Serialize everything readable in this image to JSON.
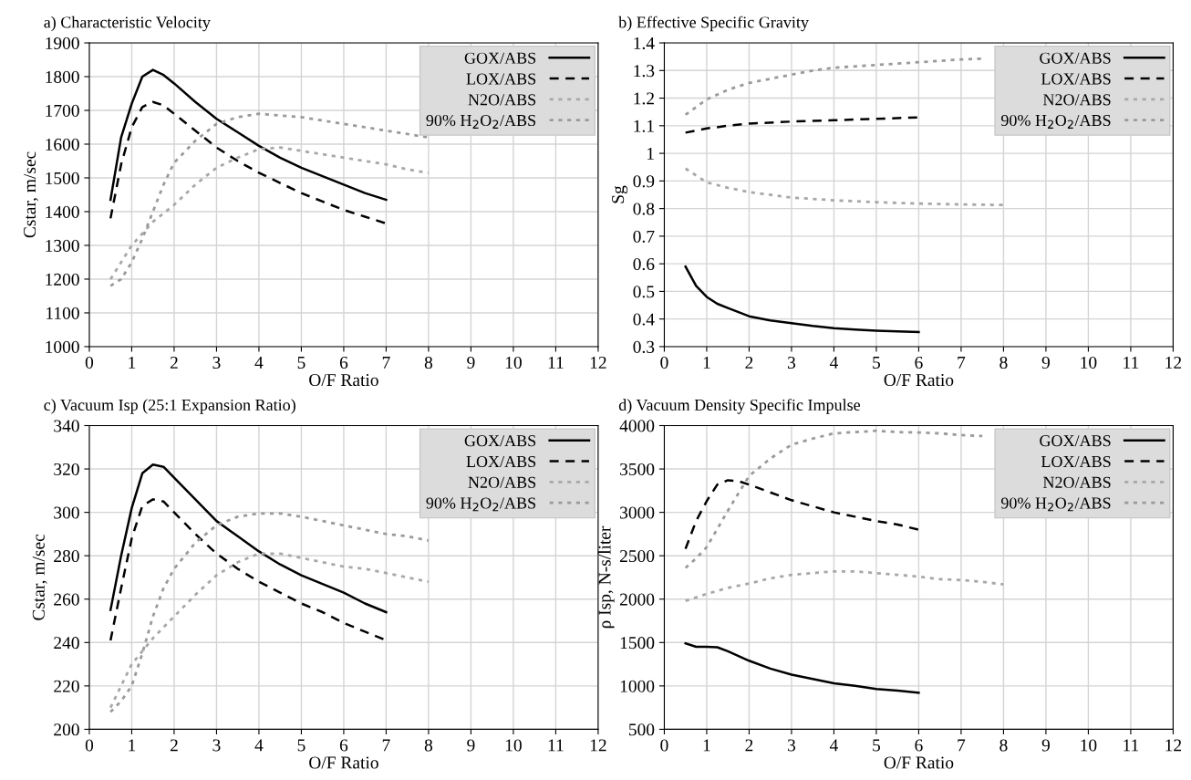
{
  "chart_data": [
    {
      "type": "line",
      "title": "a) Characteristic Velocity",
      "xlabel": "O/F Ratio",
      "ylabel": "Cstar, m/sec",
      "xlim": [
        0,
        12
      ],
      "xticks": [
        0,
        1,
        2,
        3,
        4,
        5,
        6,
        7,
        8,
        9,
        10,
        11,
        12
      ],
      "ylim": [
        1000,
        1900
      ],
      "yticks": [
        1000,
        1100,
        1200,
        1300,
        1400,
        1500,
        1600,
        1700,
        1800,
        1900
      ],
      "grid": true,
      "legend": "top right",
      "series": [
        {
          "name": "GOX/ABS",
          "color": "#000000",
          "line_style": "solid",
          "x": [
            0.5,
            0.75,
            1,
            1.25,
            1.5,
            1.75,
            2,
            2.5,
            3,
            3.5,
            4,
            4.5,
            5,
            5.5,
            6,
            6.5,
            7
          ],
          "values": [
            1435,
            1620,
            1720,
            1800,
            1820,
            1805,
            1780,
            1725,
            1675,
            1635,
            1595,
            1560,
            1530,
            1505,
            1480,
            1455,
            1435
          ]
        },
        {
          "name": "LOX/ABS",
          "color": "#000000",
          "line_style": "dashed",
          "x": [
            0.5,
            0.75,
            1,
            1.25,
            1.5,
            1.75,
            2,
            2.5,
            3,
            3.5,
            4,
            4.5,
            5,
            5.5,
            6,
            6.5,
            7
          ],
          "values": [
            1380,
            1540,
            1650,
            1710,
            1725,
            1715,
            1690,
            1640,
            1590,
            1550,
            1515,
            1485,
            1455,
            1430,
            1405,
            1385,
            1365
          ]
        },
        {
          "name": "N2O/ABS",
          "color": "#a8a8a8",
          "line_style": "dotted",
          "x": [
            0.5,
            0.75,
            1,
            1.5,
            2,
            2.5,
            3,
            3.5,
            4,
            4.5,
            5,
            5.5,
            6,
            6.5,
            7,
            7.5,
            8
          ],
          "values": [
            1200,
            1250,
            1300,
            1370,
            1420,
            1480,
            1530,
            1560,
            1585,
            1590,
            1580,
            1570,
            1560,
            1550,
            1540,
            1525,
            1515
          ]
        },
        {
          "name": "90% H$_{2}$O$_{2}$/ABS",
          "color": "#9a9a9a",
          "line_style": "dotted",
          "x": [
            0.5,
            0.75,
            1,
            1.25,
            1.5,
            1.75,
            2,
            2.5,
            3,
            3.5,
            4,
            4.5,
            5,
            5.5,
            6,
            6.5,
            7,
            7.5,
            8
          ],
          "values": [
            1180,
            1200,
            1250,
            1320,
            1400,
            1480,
            1545,
            1610,
            1660,
            1680,
            1690,
            1685,
            1680,
            1670,
            1660,
            1650,
            1640,
            1630,
            1620
          ]
        }
      ]
    },
    {
      "type": "line",
      "title": "b) Effective Specific Gravity",
      "xlabel": "O/F Ratio",
      "ylabel": "Sg",
      "xlim": [
        0,
        12
      ],
      "xticks": [
        0,
        1,
        2,
        3,
        4,
        5,
        6,
        7,
        8,
        9,
        10,
        11,
        12
      ],
      "ylim": [
        0.3,
        1.4
      ],
      "yticks": [
        0.3,
        0.4,
        0.5,
        0.6,
        0.7,
        0.8,
        0.9,
        1,
        1.1,
        1.2,
        1.3,
        1.4
      ],
      "grid": true,
      "legend": "top right",
      "series": [
        {
          "name": "GOX/ABS",
          "color": "#000000",
          "line_style": "solid",
          "x": [
            0.5,
            0.75,
            1,
            1.25,
            1.5,
            2,
            2.5,
            3,
            3.5,
            4,
            4.5,
            5,
            5.5,
            6
          ],
          "values": [
            0.59,
            0.52,
            0.48,
            0.455,
            0.44,
            0.41,
            0.395,
            0.385,
            0.375,
            0.367,
            0.362,
            0.358,
            0.355,
            0.353
          ]
        },
        {
          "name": "LOX/ABS",
          "color": "#000000",
          "line_style": "dashed",
          "x": [
            0.5,
            1,
            1.5,
            2,
            3,
            4,
            5,
            6
          ],
          "values": [
            1.075,
            1.09,
            1.1,
            1.108,
            1.115,
            1.12,
            1.125,
            1.13
          ]
        },
        {
          "name": "N2O/ABS",
          "color": "#a8a8a8",
          "line_style": "dotted",
          "x": [
            0.5,
            1,
            1.5,
            2,
            2.5,
            3,
            4,
            5,
            6,
            7,
            8
          ],
          "values": [
            0.945,
            0.895,
            0.875,
            0.86,
            0.85,
            0.84,
            0.83,
            0.823,
            0.818,
            0.815,
            0.813
          ]
        },
        {
          "name": "90% H$_{2}$O$_{2}$/ABS",
          "color": "#9a9a9a",
          "line_style": "dotted",
          "x": [
            0.5,
            1,
            1.5,
            2,
            2.5,
            3,
            3.5,
            4,
            5,
            6,
            7,
            7.5
          ],
          "values": [
            1.14,
            1.195,
            1.23,
            1.255,
            1.27,
            1.285,
            1.3,
            1.31,
            1.32,
            1.33,
            1.34,
            1.343
          ]
        }
      ]
    },
    {
      "type": "line",
      "title": "c) Vacuum Isp (25:1 Expansion Ratio)",
      "xlabel": "O/F Ratio",
      "ylabel": "Cstar, m/sec",
      "xlim": [
        0,
        12
      ],
      "xticks": [
        0,
        1,
        2,
        3,
        4,
        5,
        6,
        7,
        8,
        9,
        10,
        11,
        12
      ],
      "ylim": [
        200,
        340
      ],
      "yticks": [
        200,
        220,
        240,
        260,
        280,
        300,
        320,
        340
      ],
      "grid": true,
      "legend": "top right",
      "series": [
        {
          "name": "GOX/ABS",
          "color": "#000000",
          "line_style": "solid",
          "x": [
            0.5,
            0.75,
            1,
            1.25,
            1.5,
            1.75,
            2,
            2.5,
            3,
            3.5,
            4,
            4.5,
            5,
            5.5,
            6,
            6.5,
            7
          ],
          "values": [
            255,
            280,
            302,
            318,
            322,
            321,
            316,
            306,
            296,
            289,
            282,
            276,
            271,
            267,
            263,
            258,
            254
          ]
        },
        {
          "name": "LOX/ABS",
          "color": "#000000",
          "line_style": "dashed",
          "x": [
            0.5,
            0.75,
            1,
            1.25,
            1.5,
            1.75,
            2,
            2.5,
            3,
            3.5,
            4,
            4.5,
            5,
            5.5,
            6,
            6.5,
            7
          ],
          "values": [
            241,
            265,
            288,
            303,
            306,
            305,
            300,
            290,
            281,
            274,
            268,
            263,
            258,
            254,
            249,
            245,
            241
          ]
        },
        {
          "name": "N2O/ABS",
          "color": "#a8a8a8",
          "line_style": "dotted",
          "x": [
            0.5,
            1,
            1.5,
            2,
            2.5,
            3,
            3.5,
            4,
            4.5,
            5,
            5.5,
            6,
            6.5,
            7,
            7.5,
            8
          ],
          "values": [
            210,
            230,
            242,
            252,
            262,
            271,
            277,
            281,
            281,
            279,
            277,
            275,
            274,
            272,
            270,
            268
          ]
        },
        {
          "name": "90% H$_{2}$O$_{2}$/ABS",
          "color": "#9a9a9a",
          "line_style": "dotted",
          "x": [
            0.5,
            0.75,
            1,
            1.25,
            1.5,
            1.75,
            2,
            2.5,
            3,
            3.5,
            4,
            4.5,
            5,
            5.5,
            6,
            6.5,
            7,
            7.5,
            8
          ],
          "values": [
            208,
            213,
            220,
            235,
            252,
            265,
            274,
            286,
            294,
            298,
            299.5,
            299.5,
            298,
            296,
            294,
            292,
            290,
            289,
            287
          ]
        }
      ]
    },
    {
      "type": "line",
      "title": "d) Vacuum Density Specific Impulse",
      "xlabel": "O/F Ratio",
      "ylabel": "ρ Isp, N-s/liter",
      "xlim": [
        0,
        12
      ],
      "xticks": [
        0,
        1,
        2,
        3,
        4,
        5,
        6,
        7,
        8,
        9,
        10,
        11,
        12
      ],
      "ylim": [
        500,
        4000
      ],
      "yticks": [
        500,
        1000,
        1500,
        2000,
        2500,
        3000,
        3500,
        4000
      ],
      "grid": true,
      "legend": "top right",
      "series": [
        {
          "name": "GOX/ABS",
          "color": "#000000",
          "line_style": "solid",
          "x": [
            0.5,
            0.75,
            1,
            1.25,
            1.5,
            2,
            2.5,
            3,
            3.5,
            4,
            4.5,
            5,
            5.5,
            6
          ],
          "values": [
            1490,
            1450,
            1450,
            1445,
            1400,
            1290,
            1200,
            1130,
            1080,
            1030,
            1000,
            965,
            945,
            920
          ]
        },
        {
          "name": "LOX/ABS",
          "color": "#000000",
          "line_style": "dashed",
          "x": [
            0.5,
            0.75,
            1,
            1.25,
            1.5,
            1.75,
            2,
            2.5,
            3,
            3.5,
            4,
            4.5,
            5,
            5.5,
            6
          ],
          "values": [
            2580,
            2900,
            3130,
            3320,
            3370,
            3360,
            3320,
            3230,
            3140,
            3070,
            3000,
            2950,
            2900,
            2860,
            2800
          ]
        },
        {
          "name": "N2O/ABS",
          "color": "#a8a8a8",
          "line_style": "dotted",
          "x": [
            0.5,
            1,
            1.5,
            2,
            2.5,
            3,
            3.5,
            4,
            4.5,
            5,
            5.5,
            6,
            6.5,
            7,
            7.5,
            8
          ],
          "values": [
            1980,
            2060,
            2130,
            2180,
            2240,
            2280,
            2300,
            2320,
            2320,
            2300,
            2280,
            2260,
            2230,
            2220,
            2200,
            2170
          ]
        },
        {
          "name": "90% H$_{2}$O$_{2}$/ABS",
          "color": "#9a9a9a",
          "line_style": "dotted",
          "x": [
            0.5,
            0.75,
            1,
            1.5,
            2,
            2.5,
            3,
            3.5,
            4,
            4.5,
            5,
            5.5,
            6,
            6.5,
            7,
            7.5
          ],
          "values": [
            2360,
            2470,
            2600,
            3020,
            3420,
            3620,
            3780,
            3850,
            3910,
            3925,
            3940,
            3925,
            3920,
            3910,
            3890,
            3880
          ]
        }
      ]
    }
  ]
}
